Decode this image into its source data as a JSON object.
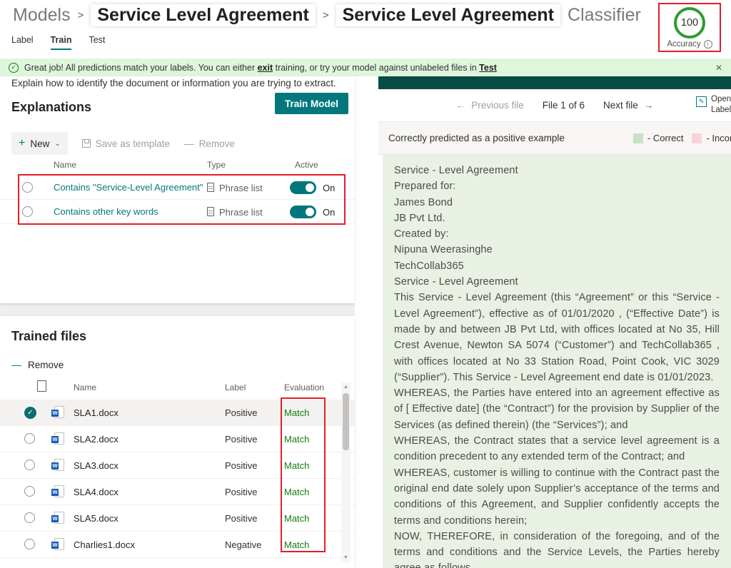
{
  "breadcrumb": {
    "root": "Models",
    "separator": ">",
    "model_name": "Service Level Agreement",
    "page_name": "Service Level Agreement",
    "page_suffix": "Classifier"
  },
  "tabs": [
    {
      "label": "Label",
      "active": false
    },
    {
      "label": "Train",
      "active": true
    },
    {
      "label": "Test",
      "active": false
    }
  ],
  "accuracy": {
    "value": "100",
    "label": "Accuracy"
  },
  "banner": {
    "text_prefix": "Great job! All predictions match your labels. You can either ",
    "exit_link": "exit",
    "text_middle": " training, or try your model against unlabeled files in ",
    "test_link": "Test"
  },
  "explanations": {
    "intro": "Explain how to identify the document or information you are trying to extract.",
    "title": "Explanations",
    "train_button": "Train Model",
    "toolbar": {
      "new": "New",
      "save_as_template": "Save as template",
      "remove": "Remove"
    },
    "columns": {
      "name": "Name",
      "type": "Type",
      "active": "Active"
    },
    "rows": [
      {
        "name": "Contains \"Service-Level Agreement\"",
        "type": "Phrase list",
        "active": "On"
      },
      {
        "name": "Contains other key words",
        "type": "Phrase list",
        "active": "On"
      }
    ]
  },
  "trained_files": {
    "title": "Trained files",
    "remove": "Remove",
    "columns": {
      "name": "Name",
      "label": "Label",
      "evaluation": "Evaluation"
    },
    "rows": [
      {
        "name": "SLA1.docx",
        "label": "Positive",
        "evaluation": "Match",
        "selected": true
      },
      {
        "name": "SLA2.docx",
        "label": "Positive",
        "evaluation": "Match",
        "selected": false
      },
      {
        "name": "SLA3.docx",
        "label": "Positive",
        "evaluation": "Match",
        "selected": false
      },
      {
        "name": "SLA4.docx",
        "label": "Positive",
        "evaluation": "Match",
        "selected": false
      },
      {
        "name": "SLA5.docx",
        "label": "Positive",
        "evaluation": "Match",
        "selected": false
      },
      {
        "name": "Charlies1.docx",
        "label": "Negative",
        "evaluation": "Match",
        "selected": false
      }
    ]
  },
  "viewer": {
    "prev": "Previous file",
    "file_position": "File 1 of 6",
    "next": "Next file",
    "open_label_line1": "Open in",
    "open_label_line2": "Label",
    "status": "Correctly predicted as a positive example",
    "legend": [
      {
        "label": "- Correct",
        "color": "#c9e2c4"
      },
      {
        "label": "- Incorrect",
        "color": "#f6d4d8"
      }
    ],
    "document_lines": [
      "Service - Level Agreement",
      "Prepared for:",
      "James Bond",
      "JB Pvt Ltd.",
      "Created by:",
      "Nipuna Weerasinghe",
      "TechCollab365",
      "Service - Level Agreement",
      "This Service - Level Agreement (this “Agreement” or this “Service - Level Agreement”), effective as of 01/01/2020 , (“Effective Date”) is made by and between JB Pvt Ltd, with offices located at No 35, Hill Crest Avenue, Newton SA 5074 (“Customer”) and TechCollab365 , with offices located at No 33 Station Road, Point Cook, VIC 3029 (“Supplier”). This Service - Level Agreement end date is 01/01/2023.",
      "WHEREAS, the Parties have entered into an agreement effective as of [ Effective date] (the “Contract”) for the provision by Supplier of the Services (as defined therein) (the “Services”); and",
      "WHEREAS, the Contract states that a service level agreement is a condition precedent to any extended term of the Contract; and",
      "WHEREAS, customer is willing to continue with the Contract past the original end date solely upon Supplier’s acceptance of the terms and conditions of this Agreement, and Supplier confidently accepts the terms and conditions herein;",
      "NOW, THEREFORE, in consideration of the foregoing, and of the terms and conditions and the Service Levels, the Parties hereby agree as follows"
    ]
  },
  "icons": {
    "check": "✓",
    "close": "✕",
    "plus": "+",
    "chevron_down": "⌄",
    "dash": "—",
    "arrow_left": "←",
    "arrow_right": "→",
    "pencil": "✎",
    "info": "i",
    "scroll_up": "▲",
    "scroll_down": "▼",
    "word_letter": "W"
  },
  "colors": {
    "accent": "#03787c",
    "dark_bar": "#084a44",
    "banner_bg": "#dff6dd",
    "match_green": "#107c10",
    "accuracy_green": "#2f9b2f",
    "highlight_red": "#e61e26",
    "doc_bg": "#e9f1e5"
  }
}
